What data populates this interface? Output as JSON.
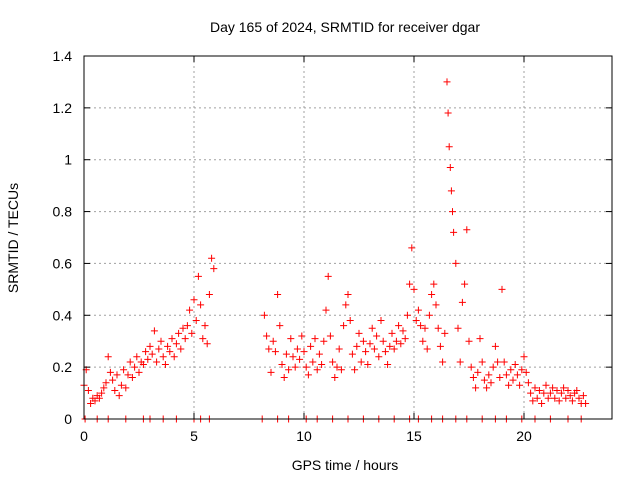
{
  "chart_data": {
    "type": "scatter",
    "title": "Day 165 of 2024, SRMTID for receiver dgar",
    "xlabel": "GPS time / hours",
    "ylabel": "SRMTID / TECUs",
    "xlim": [
      0,
      24
    ],
    "ylim": [
      0,
      1.4
    ],
    "xticks": [
      0,
      5,
      10,
      15,
      20
    ],
    "xtick_labels": [
      "0",
      "5",
      "10",
      "15",
      "20"
    ],
    "yticks": [
      0,
      0.2,
      0.4,
      0.6,
      0.8,
      1,
      1.2,
      1.4
    ],
    "ytick_labels": [
      "0",
      "0.2",
      "0.4",
      "0.6",
      "0.8",
      "1",
      "1.2",
      "1.4"
    ],
    "grid": true,
    "marker": "+",
    "color": "#ff0000",
    "series": [
      {
        "name": "SRMTID",
        "points": [
          [
            0.0,
            0.13
          ],
          [
            0.1,
            0.19
          ],
          [
            0.2,
            0.11
          ],
          [
            0.3,
            0.06
          ],
          [
            0.4,
            0.08
          ],
          [
            0.5,
            0.07
          ],
          [
            0.6,
            0.09
          ],
          [
            0.7,
            0.08
          ],
          [
            0.8,
            0.1
          ],
          [
            0.9,
            0.12
          ],
          [
            1.0,
            0.14
          ],
          [
            1.1,
            0.24
          ],
          [
            1.2,
            0.18
          ],
          [
            1.3,
            0.15
          ],
          [
            1.4,
            0.11
          ],
          [
            1.5,
            0.17
          ],
          [
            1.6,
            0.09
          ],
          [
            1.7,
            0.13
          ],
          [
            1.8,
            0.19
          ],
          [
            1.9,
            0.12
          ],
          [
            2.0,
            0.17
          ],
          [
            2.1,
            0.22
          ],
          [
            2.2,
            0.16
          ],
          [
            2.3,
            0.2
          ],
          [
            2.4,
            0.24
          ],
          [
            2.5,
            0.18
          ],
          [
            2.6,
            0.22
          ],
          [
            2.7,
            0.21
          ],
          [
            2.8,
            0.26
          ],
          [
            2.9,
            0.23
          ],
          [
            3.0,
            0.28
          ],
          [
            3.1,
            0.25
          ],
          [
            3.2,
            0.34
          ],
          [
            3.3,
            0.22
          ],
          [
            3.4,
            0.27
          ],
          [
            3.5,
            0.3
          ],
          [
            3.6,
            0.24
          ],
          [
            3.7,
            0.21
          ],
          [
            3.8,
            0.28
          ],
          [
            3.9,
            0.26
          ],
          [
            4.0,
            0.31
          ],
          [
            4.1,
            0.24
          ],
          [
            4.2,
            0.29
          ],
          [
            4.3,
            0.33
          ],
          [
            4.4,
            0.27
          ],
          [
            4.5,
            0.35
          ],
          [
            4.6,
            0.31
          ],
          [
            4.7,
            0.36
          ],
          [
            4.8,
            0.42
          ],
          [
            4.9,
            0.33
          ],
          [
            5.0,
            0.46
          ],
          [
            5.1,
            0.38
          ],
          [
            5.2,
            0.55
          ],
          [
            5.3,
            0.44
          ],
          [
            5.4,
            0.31
          ],
          [
            5.5,
            0.36
          ],
          [
            5.6,
            0.29
          ],
          [
            5.7,
            0.48
          ],
          [
            5.8,
            0.62
          ],
          [
            5.9,
            0.58
          ],
          [
            8.2,
            0.4
          ],
          [
            8.3,
            0.32
          ],
          [
            8.4,
            0.27
          ],
          [
            8.5,
            0.18
          ],
          [
            8.6,
            0.3
          ],
          [
            8.7,
            0.26
          ],
          [
            8.8,
            0.48
          ],
          [
            8.9,
            0.36
          ],
          [
            9.0,
            0.21
          ],
          [
            9.1,
            0.16
          ],
          [
            9.2,
            0.25
          ],
          [
            9.3,
            0.19
          ],
          [
            9.4,
            0.31
          ],
          [
            9.5,
            0.24
          ],
          [
            9.6,
            0.2
          ],
          [
            9.7,
            0.27
          ],
          [
            9.8,
            0.23
          ],
          [
            9.9,
            0.32
          ],
          [
            10.0,
            0.26
          ],
          [
            10.1,
            0.2
          ],
          [
            10.2,
            0.17
          ],
          [
            10.3,
            0.28
          ],
          [
            10.4,
            0.22
          ],
          [
            10.5,
            0.31
          ],
          [
            10.6,
            0.19
          ],
          [
            10.7,
            0.25
          ],
          [
            10.8,
            0.21
          ],
          [
            10.9,
            0.3
          ],
          [
            11.0,
            0.42
          ],
          [
            11.1,
            0.55
          ],
          [
            11.2,
            0.32
          ],
          [
            11.3,
            0.22
          ],
          [
            11.4,
            0.16
          ],
          [
            11.5,
            0.2
          ],
          [
            11.6,
            0.27
          ],
          [
            11.7,
            0.19
          ],
          [
            11.8,
            0.36
          ],
          [
            11.9,
            0.44
          ],
          [
            12.0,
            0.48
          ],
          [
            12.1,
            0.38
          ],
          [
            12.2,
            0.25
          ],
          [
            12.3,
            0.19
          ],
          [
            12.4,
            0.28
          ],
          [
            12.5,
            0.33
          ],
          [
            12.6,
            0.22
          ],
          [
            12.7,
            0.3
          ],
          [
            12.8,
            0.26
          ],
          [
            12.9,
            0.21
          ],
          [
            13.0,
            0.29
          ],
          [
            13.1,
            0.35
          ],
          [
            13.2,
            0.27
          ],
          [
            13.3,
            0.32
          ],
          [
            13.4,
            0.24
          ],
          [
            13.5,
            0.38
          ],
          [
            13.6,
            0.3
          ],
          [
            13.7,
            0.26
          ],
          [
            13.8,
            0.21
          ],
          [
            13.9,
            0.28
          ],
          [
            14.0,
            0.33
          ],
          [
            14.1,
            0.27
          ],
          [
            14.2,
            0.3
          ],
          [
            14.3,
            0.36
          ],
          [
            14.4,
            0.29
          ],
          [
            14.5,
            0.34
          ],
          [
            14.6,
            0.31
          ],
          [
            14.7,
            0.4
          ],
          [
            14.8,
            0.52
          ],
          [
            14.9,
            0.66
          ],
          [
            15.0,
            0.5
          ],
          [
            15.1,
            0.38
          ],
          [
            15.2,
            0.42
          ],
          [
            15.3,
            0.36
          ],
          [
            15.4,
            0.3
          ],
          [
            15.5,
            0.35
          ],
          [
            15.6,
            0.27
          ],
          [
            15.7,
            0.4
          ],
          [
            15.8,
            0.48
          ],
          [
            15.9,
            0.52
          ],
          [
            16.0,
            0.44
          ],
          [
            16.1,
            0.35
          ],
          [
            16.2,
            0.28
          ],
          [
            16.3,
            0.22
          ],
          [
            16.4,
            0.33
          ],
          [
            16.5,
            1.3
          ],
          [
            16.55,
            1.18
          ],
          [
            16.6,
            1.05
          ],
          [
            16.65,
            0.97
          ],
          [
            16.7,
            0.88
          ],
          [
            16.75,
            0.8
          ],
          [
            16.8,
            0.72
          ],
          [
            16.9,
            0.6
          ],
          [
            17.0,
            0.35
          ],
          [
            17.1,
            0.22
          ],
          [
            17.2,
            0.45
          ],
          [
            17.3,
            0.52
          ],
          [
            17.4,
            0.73
          ],
          [
            17.5,
            0.3
          ],
          [
            17.6,
            0.2
          ],
          [
            17.7,
            0.16
          ],
          [
            17.8,
            0.12
          ],
          [
            17.9,
            0.18
          ],
          [
            18.0,
            0.31
          ],
          [
            18.1,
            0.22
          ],
          [
            18.2,
            0.15
          ],
          [
            18.3,
            0.12
          ],
          [
            18.4,
            0.17
          ],
          [
            18.5,
            0.14
          ],
          [
            18.6,
            0.2
          ],
          [
            18.7,
            0.28
          ],
          [
            18.8,
            0.22
          ],
          [
            18.9,
            0.16
          ],
          [
            19.0,
            0.5
          ],
          [
            19.1,
            0.22
          ],
          [
            19.2,
            0.17
          ],
          [
            19.3,
            0.13
          ],
          [
            19.4,
            0.19
          ],
          [
            19.5,
            0.15
          ],
          [
            19.6,
            0.21
          ],
          [
            19.7,
            0.17
          ],
          [
            19.8,
            0.13
          ],
          [
            19.9,
            0.19
          ],
          [
            20.0,
            0.24
          ],
          [
            20.1,
            0.18
          ],
          [
            20.2,
            0.14
          ],
          [
            20.3,
            0.1
          ],
          [
            20.4,
            0.07
          ],
          [
            20.5,
            0.12
          ],
          [
            20.6,
            0.08
          ],
          [
            20.7,
            0.11
          ],
          [
            20.8,
            0.06
          ],
          [
            20.9,
            0.1
          ],
          [
            21.0,
            0.13
          ],
          [
            21.1,
            0.08
          ],
          [
            21.2,
            0.1
          ],
          [
            21.3,
            0.12
          ],
          [
            21.4,
            0.08
          ],
          [
            21.5,
            0.11
          ],
          [
            21.6,
            0.07
          ],
          [
            21.7,
            0.1
          ],
          [
            21.8,
            0.12
          ],
          [
            21.9,
            0.08
          ],
          [
            22.0,
            0.11
          ],
          [
            22.1,
            0.09
          ],
          [
            22.2,
            0.07
          ],
          [
            22.3,
            0.1
          ],
          [
            22.4,
            0.11
          ],
          [
            22.5,
            0.08
          ],
          [
            22.6,
            0.06
          ],
          [
            22.7,
            0.09
          ],
          [
            22.8,
            0.06
          ],
          [
            0.05,
            0.0
          ],
          [
            0.6,
            0.0
          ],
          [
            1.1,
            0.0
          ],
          [
            1.9,
            0.0
          ],
          [
            2.7,
            0.0
          ],
          [
            3.0,
            0.0
          ],
          [
            3.6,
            0.0
          ],
          [
            4.2,
            0.0
          ],
          [
            5.0,
            0.0
          ],
          [
            5.3,
            0.0
          ],
          [
            5.7,
            0.0
          ],
          [
            8.1,
            0.0
          ],
          [
            8.8,
            0.0
          ],
          [
            9.3,
            0.0
          ],
          [
            10.1,
            0.0
          ],
          [
            10.6,
            0.0
          ],
          [
            11.3,
            0.0
          ],
          [
            12.0,
            0.0
          ],
          [
            12.7,
            0.0
          ],
          [
            13.4,
            0.0
          ],
          [
            14.1,
            0.0
          ],
          [
            14.8,
            0.0
          ],
          [
            15.2,
            0.0
          ],
          [
            15.8,
            0.0
          ],
          [
            16.3,
            0.0
          ],
          [
            16.9,
            0.0
          ],
          [
            17.4,
            0.0
          ],
          [
            18.1,
            0.0
          ],
          [
            18.7,
            0.0
          ],
          [
            19.2,
            0.0
          ],
          [
            19.9,
            0.0
          ],
          [
            20.5,
            0.0
          ],
          [
            21.2,
            0.0
          ],
          [
            22.0,
            0.0
          ],
          [
            22.6,
            0.0
          ]
        ]
      }
    ]
  }
}
